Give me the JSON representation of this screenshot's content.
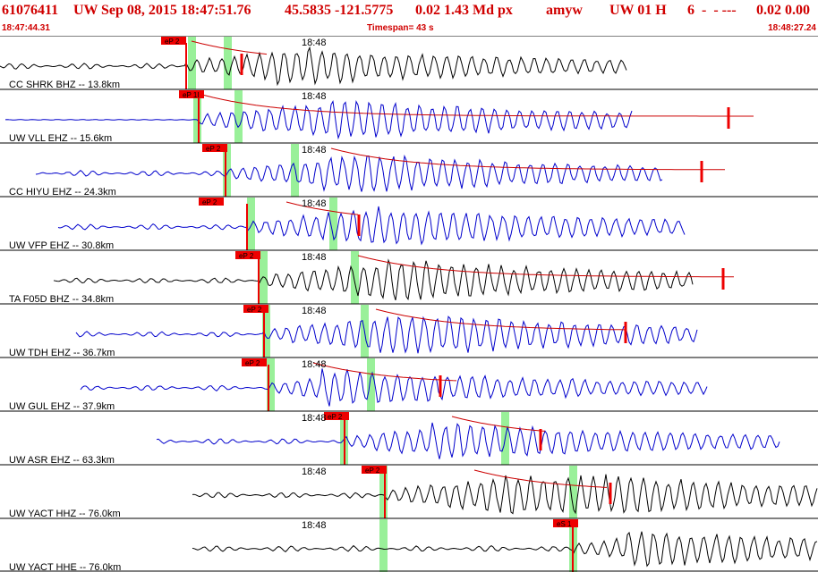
{
  "header": {
    "event_id": "61076411",
    "network": "UW",
    "datetime": "Sep 08, 2015 18:47:51.76",
    "lat_lon": "45.5835 -121.5775",
    "magnitude": "0.02 1.43 Md px",
    "analyst": "amyw",
    "status": "UW 01 H",
    "count_flags": "6  -  - ---",
    "right_values": "0.02 0.00"
  },
  "subheader": {
    "start_time": "18:47:44.31",
    "timespan": "Timespan=  43 s",
    "end_time": "18:48:27.24"
  },
  "time_label": "18:48",
  "colors": {
    "header_text": "#d00000",
    "trace_black": "#000000",
    "trace_blue": "#0000cc",
    "pick": "#ee0000",
    "green_band": "#99f099",
    "coda_red": "#cc0000"
  },
  "traces": [
    {
      "label": "CC SHRK BHZ -- 13.8km",
      "color": "black",
      "pick": "eP 2"
    },
    {
      "label": "UW VLL EHZ -- 15.6km",
      "color": "blue",
      "pick": "eP 1I"
    },
    {
      "label": "CC HIYU EHZ -- 24.3km",
      "color": "blue",
      "pick": "eP 2"
    },
    {
      "label": "UW VFP EHZ -- 30.8km",
      "color": "blue",
      "pick": "eP 2"
    },
    {
      "label": "TA F05D BHZ -- 34.8km",
      "color": "black",
      "pick": "eP 2"
    },
    {
      "label": "UW TDH EHZ -- 36.7km",
      "color": "blue",
      "pick": "eP 2"
    },
    {
      "label": "UW GUL EHZ -- 37.9km",
      "color": "blue",
      "pick": "eP 2"
    },
    {
      "label": "UW ASR EHZ -- 63.3km",
      "color": "blue",
      "pick": "eP 2"
    },
    {
      "label": "UW YACT HHZ -- 76.0km",
      "color": "black",
      "pick": "eP 2"
    },
    {
      "label": "UW YACT HHE -- 76.0km",
      "color": "black",
      "pick": "eS 1"
    }
  ]
}
